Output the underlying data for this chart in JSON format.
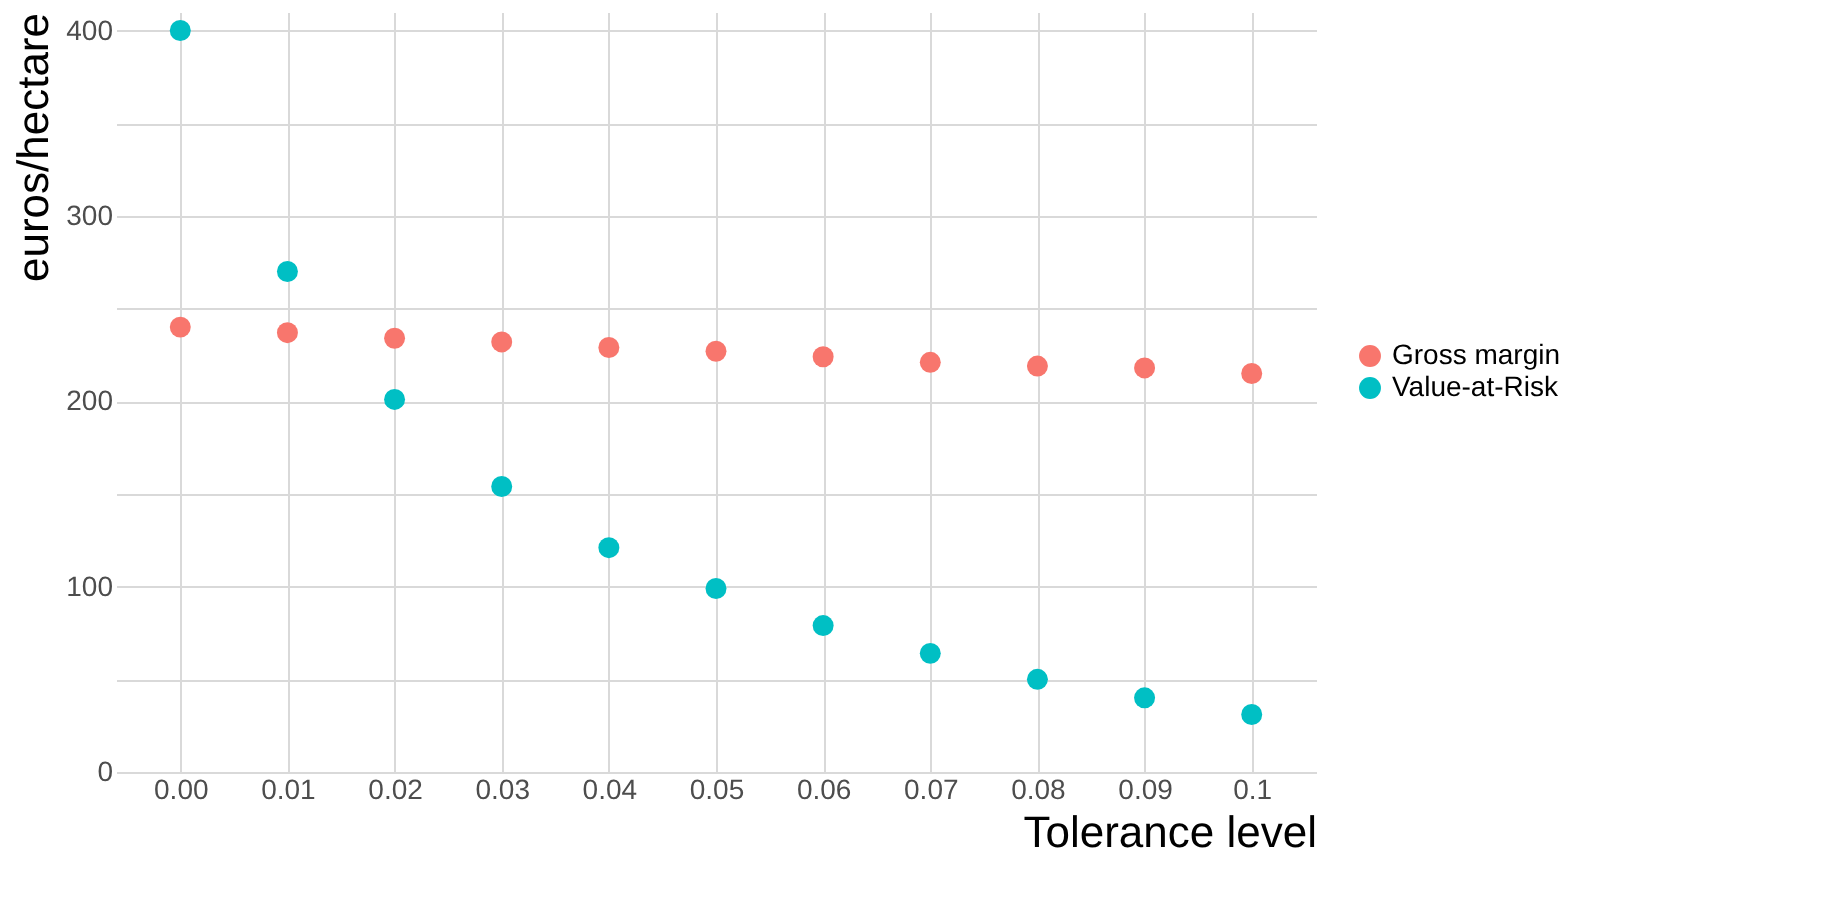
{
  "chart_data": {
    "type": "scatter",
    "xlabel": "Tolerance level",
    "ylabel": "euros/hectare",
    "categories": [
      "0.00",
      "0.01",
      "0.02",
      "0.03",
      "0.04",
      "0.05",
      "0.06",
      "0.07",
      "0.08",
      "0.09",
      "0.1"
    ],
    "series": [
      {
        "name": "Gross margin",
        "color": "#f8766d",
        "values": [
          240,
          237,
          234,
          232,
          229,
          227,
          224,
          221,
          219,
          218,
          215
        ]
      },
      {
        "name": "Value-at-Risk",
        "color": "#00bfc4",
        "values": [
          400,
          270,
          201,
          154,
          121,
          99,
          79,
          64,
          50,
          40,
          31
        ]
      }
    ],
    "ylim": [
      0,
      410
    ],
    "yticks": [
      0,
      {
        "value": 50,
        "label": null
      },
      100,
      {
        "value": 150,
        "label": null
      },
      200,
      {
        "value": 250,
        "label": null
      },
      300,
      {
        "value": 350,
        "label": null
      },
      400
    ],
    "grid": true,
    "legend": "right",
    "marker": "circle"
  }
}
